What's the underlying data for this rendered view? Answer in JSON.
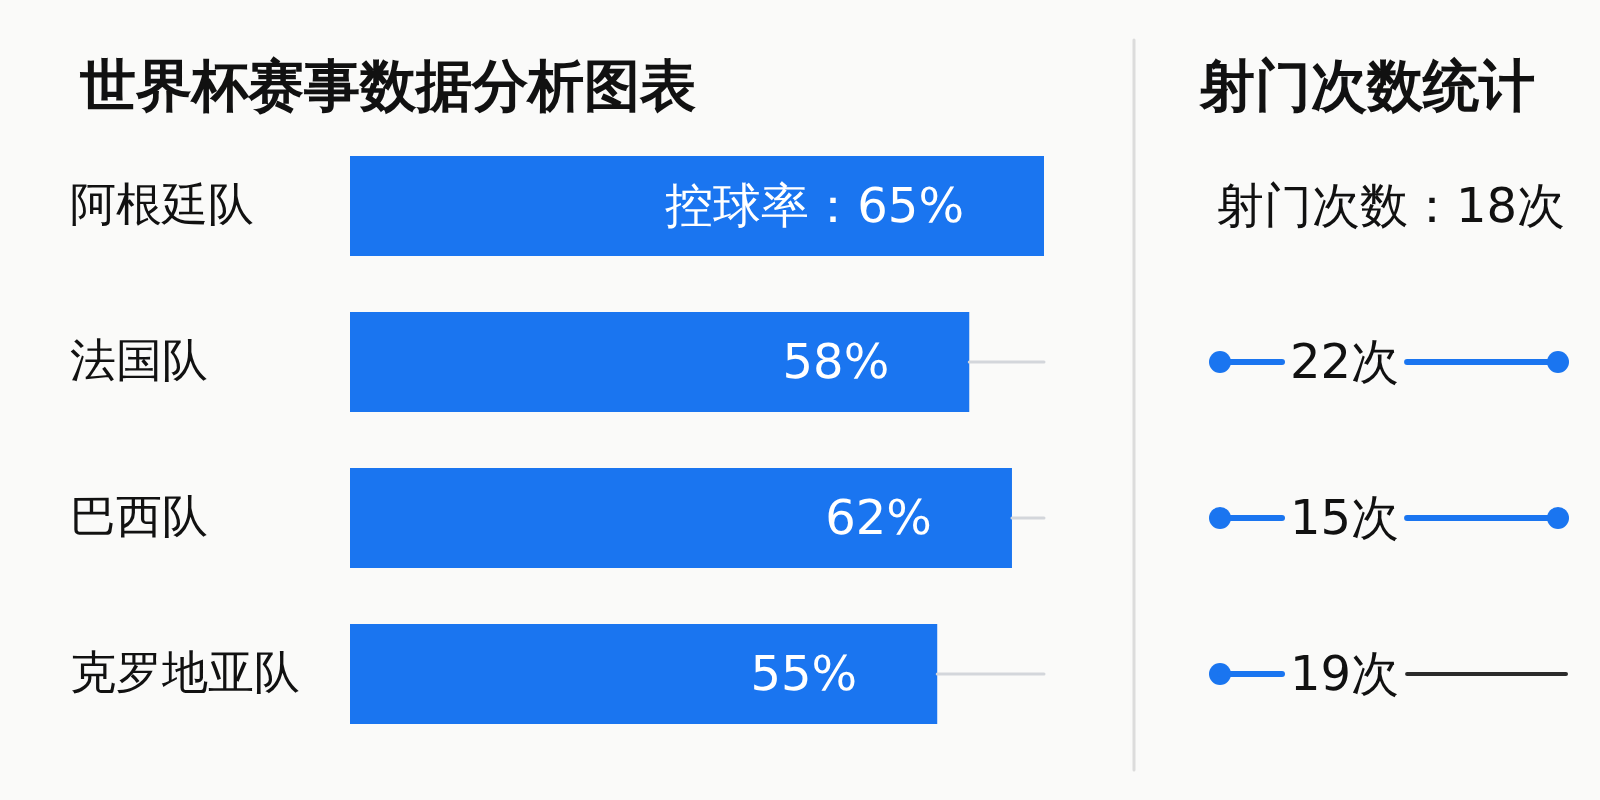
{
  "chart_data": [
    {
      "type": "bar",
      "orientation": "horizontal",
      "title": "世界杯赛事数据分析图表",
      "categories": [
        "阿根廷队",
        "法国队",
        "巴西队",
        "克罗地亚队"
      ],
      "values": [
        65,
        58,
        62,
        55
      ],
      "color": "#1a75f0",
      "value_labels": [
        "控球率：65%",
        "58%",
        "62%",
        "55%"
      ]
    },
    {
      "type": "other",
      "title": "射门次数统计",
      "categories": [
        null,
        null,
        null,
        null
      ],
      "values": [
        18,
        22,
        15,
        19
      ],
      "value_labels": [
        "射门次数：18次",
        "22次",
        "15次",
        "19次"
      ]
    }
  ]
}
